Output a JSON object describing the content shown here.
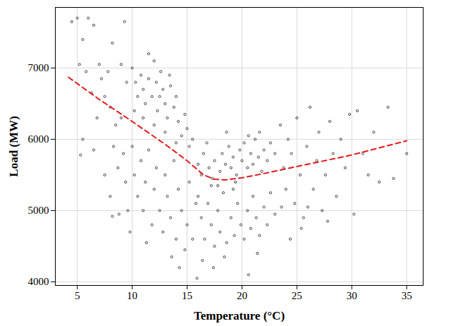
{
  "chart_data": {
    "type": "scatter",
    "x_label": "Temperature (°C)",
    "y_label": "Load (MW)",
    "xlim": [
      3,
      36.5
    ],
    "xticks": [
      5,
      10,
      15,
      20,
      25,
      30,
      35
    ],
    "ylim": [
      3950,
      7850
    ],
    "yticks": [
      4000,
      5000,
      6000,
      7000
    ],
    "grid": true,
    "series": [
      {
        "type": "scatter",
        "color": "#000000",
        "marker": "circle",
        "x": [
          4.5,
          5,
          5.5,
          5.2,
          6,
          6.5,
          5.8,
          6.3,
          7,
          7.2,
          7.5,
          6.8,
          5.5,
          5.3,
          7.8,
          8.2,
          8,
          8.5,
          8.3,
          8.7,
          8,
          8.2,
          9,
          9.3,
          9.5,
          9,
          9.2,
          9.4,
          9.6,
          9.8,
          8.8,
          7.5,
          6.5,
          10,
          10.3,
          10.5,
          10.2,
          10.8,
          11,
          11.2,
          11.5,
          11,
          11.8,
          12,
          12.2,
          12.5,
          12.3,
          12,
          12.8,
          13,
          13.2,
          13.5,
          13,
          13.8,
          14,
          14.2,
          14.5,
          14,
          14.8,
          15,
          15.2,
          15.5,
          11.5,
          12.6,
          13.4,
          10,
          10.2,
          10.5,
          10.8,
          11,
          11.2,
          11.5,
          11.8,
          12,
          12.2,
          12.5,
          12.8,
          13,
          13.2,
          13.5,
          13.8,
          14,
          14.2,
          14.5,
          14.8,
          14.3,
          15,
          15.2,
          15.5,
          15.8,
          13.6,
          11.3,
          16,
          16.3,
          16.5,
          17,
          17.3,
          17.5,
          18,
          18.2,
          18.5,
          18.8,
          19,
          19.2,
          19.5,
          19.8,
          20,
          20.2,
          20.5,
          20.8,
          21,
          21.2,
          21.5,
          21.8,
          22,
          22.3,
          22.6,
          23,
          17.8,
          19.4,
          20.6,
          21.6,
          16.8,
          18.6,
          16,
          16.3,
          16.6,
          16.9,
          17.2,
          17.5,
          17.8,
          18,
          18.3,
          18.6,
          19,
          19.3,
          19.6,
          19.9,
          20.2,
          20.5,
          20.8,
          21,
          21.3,
          21.6,
          22,
          22.3,
          22.6,
          23,
          16.4,
          17.4,
          18.4,
          20.6,
          21.4,
          15.9,
          19.2,
          17.2,
          23.5,
          23.8,
          24,
          24.2,
          24.5,
          24.8,
          25,
          25.3,
          25.6,
          25.9,
          26.2,
          26.5,
          26.8,
          27,
          27.3,
          27.6,
          28,
          28.3,
          28.6,
          29,
          29.4,
          29.8,
          30.2,
          30.5,
          31,
          31.5,
          32,
          32.5,
          33.3,
          33.8,
          35,
          26,
          27.8,
          25.4,
          24.4,
          23.6
        ],
        "values": [
          7650,
          7700,
          7400,
          7050,
          7700,
          7600,
          6950,
          6650,
          7050,
          6850,
          6600,
          6300,
          6000,
          5780,
          6950,
          7350,
          6450,
          6200,
          5900,
          5600,
          5200,
          4920,
          7050,
          7650,
          6800,
          6300,
          5800,
          5400,
          5000,
          4700,
          4950,
          5500,
          5850,
          7000,
          6800,
          6600,
          6400,
          6900,
          6700,
          6500,
          6850,
          6300,
          6600,
          7100,
          6800,
          6600,
          6400,
          6200,
          6700,
          6500,
          6300,
          6750,
          6100,
          6450,
          6600,
          6250,
          6050,
          5950,
          6350,
          6150,
          5900,
          6000,
          7200,
          6950,
          6900,
          5900,
          5500,
          5200,
          5700,
          5000,
          5400,
          5850,
          4800,
          5300,
          5600,
          5000,
          4700,
          5500,
          5200,
          4900,
          5700,
          4600,
          5300,
          5000,
          4450,
          4200,
          4800,
          5400,
          4600,
          5100,
          4350,
          4550,
          5650,
          5500,
          5800,
          5600,
          5450,
          5700,
          5550,
          5800,
          5650,
          5900,
          5600,
          5750,
          5500,
          5850,
          5700,
          5950,
          5600,
          5800,
          5650,
          6000,
          5750,
          5550,
          5850,
          5700,
          5950,
          5800,
          5350,
          5400,
          6050,
          6100,
          5950,
          6100,
          5200,
          4900,
          4600,
          5100,
          4800,
          4500,
          5000,
          4700,
          5250,
          4550,
          4900,
          4650,
          5100,
          4800,
          4600,
          5000,
          4750,
          5200,
          4900,
          4650,
          5050,
          4800,
          5250,
          4950,
          4300,
          4200,
          4350,
          4100,
          4400,
          4050,
          5300,
          5350,
          6200,
          5600,
          5300,
          6000,
          5800,
          5100,
          6300,
          5500,
          4900,
          5900,
          6450,
          5300,
          5700,
          6100,
          5000,
          5500,
          6250,
          5800,
          5200,
          6000,
          5600,
          6350,
          4950,
          6400,
          5800,
          5500,
          6100,
          5400,
          6450,
          5450,
          5800,
          5050,
          4850,
          4750,
          4600,
          5050
        ]
      },
      {
        "type": "line",
        "color": "#e41a1c",
        "line_style": "dashed",
        "x": [
          4.2,
          7,
          10,
          13,
          15,
          16.5,
          17.5,
          18.5,
          20,
          22,
          26,
          30,
          35
        ],
        "values": [
          6870,
          6560,
          6250,
          5930,
          5700,
          5500,
          5440,
          5430,
          5460,
          5520,
          5650,
          5780,
          5980
        ]
      }
    ]
  }
}
